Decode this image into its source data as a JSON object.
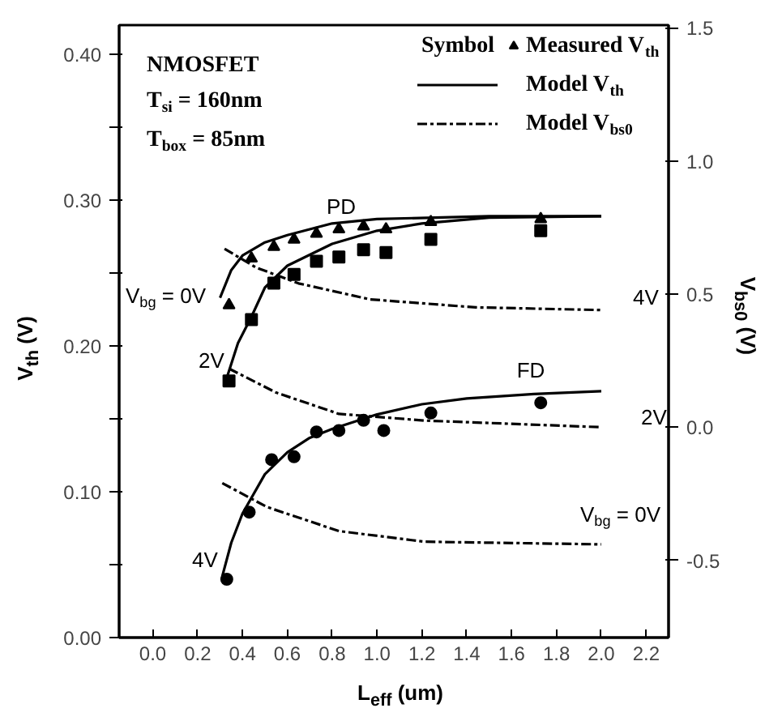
{
  "chart_data": {
    "type": "scatter",
    "xlabel": "L$_{eff}$ (um)",
    "ylabel": "V$_{th}$ (V)",
    "y2label": "V$_{bs0}$ (V)",
    "legend_title": "Symbol",
    "xlim": [
      -0.15,
      2.3
    ],
    "ylim": [
      0,
      0.42
    ],
    "y2lim": [
      -0.79,
      1.51
    ],
    "xticks": [
      {
        "value": 0,
        "label": "0.0"
      },
      {
        "value": 0.2,
        "label": "0.2"
      },
      {
        "value": 0.4,
        "label": "0.4"
      },
      {
        "value": 0.6,
        "label": "0.6"
      },
      {
        "value": 0.8,
        "label": "0.8"
      },
      {
        "value": 1.0,
        "label": "1.0"
      },
      {
        "value": 1.2,
        "label": "1.2"
      },
      {
        "value": 1.4,
        "label": "1.4"
      },
      {
        "value": 1.6,
        "label": "1.6"
      },
      {
        "value": 1.8,
        "label": "1.8"
      },
      {
        "value": 2.0,
        "label": "2.0"
      },
      {
        "value": 2.2,
        "label": "2.2"
      }
    ],
    "yticks": [
      {
        "value": 0,
        "label": "0.00"
      },
      {
        "value": 0.05,
        "label": null
      },
      {
        "value": 0.1,
        "label": "0.10"
      },
      {
        "value": 0.15,
        "label": null
      },
      {
        "value": 0.2,
        "label": "0.20"
      },
      {
        "value": 0.25,
        "label": null
      },
      {
        "value": 0.3,
        "label": "0.30"
      },
      {
        "value": 0.35,
        "label": null
      },
      {
        "value": 0.4,
        "label": "0.40"
      }
    ],
    "y2ticks": [
      {
        "value": -0.5,
        "label": "-0.5"
      },
      {
        "value": 0,
        "label": "0.0"
      },
      {
        "value": 0.5,
        "label": "0.5"
      },
      {
        "value": 1.0,
        "label": "1.0"
      },
      {
        "value": 1.5,
        "label": "1.5"
      }
    ],
    "grid": false,
    "legend": "top right",
    "series": [
      {
        "name": "Measured V$_{th}$",
        "marker": "triangle",
        "color": "#000000",
        "x": [
          0.34,
          0.44,
          0.54,
          0.63,
          0.73,
          0.83,
          0.94,
          1.04,
          1.24,
          1.73
        ],
        "values": [
          0.228,
          0.26,
          0.268,
          0.273,
          0.277,
          0.28,
          0.282,
          0.28,
          0.285,
          0.287
        ]
      },
      {
        "marker": "square",
        "color": "#000000",
        "x": [
          0.34,
          0.44,
          0.54,
          0.63,
          0.73,
          0.83,
          0.94,
          1.04,
          1.24,
          1.73
        ],
        "values": [
          0.176,
          0.218,
          0.243,
          0.249,
          0.258,
          0.261,
          0.266,
          0.264,
          0.273,
          0.279
        ]
      },
      {
        "marker": "circle",
        "color": "#000000",
        "x": [
          0.33,
          0.43,
          0.53,
          0.63,
          0.73,
          0.83,
          0.94,
          1.03,
          1.24,
          1.73
        ],
        "values": [
          0.04,
          0.086,
          0.122,
          0.124,
          0.141,
          0.142,
          0.149,
          0.142,
          0.154,
          0.161
        ]
      },
      {
        "name": "Model V$_{th}$",
        "type": "line",
        "line_style": "solid",
        "color": "#000000",
        "x": [
          0.3,
          0.35,
          0.4,
          0.5,
          0.6,
          0.8,
          1.0,
          1.5,
          2.0
        ],
        "values": [
          0.233,
          0.252,
          0.262,
          0.271,
          0.276,
          0.284,
          0.287,
          0.289,
          0.289
        ]
      },
      {
        "type": "line",
        "line_style": "solid",
        "color": "#000000",
        "x": [
          0.33,
          0.38,
          0.44,
          0.5,
          0.6,
          0.8,
          1.0,
          1.2,
          1.5,
          2.0
        ],
        "values": [
          0.178,
          0.202,
          0.22,
          0.24,
          0.255,
          0.27,
          0.279,
          0.284,
          0.288,
          0.289
        ]
      },
      {
        "type": "line",
        "line_style": "solid",
        "color": "#000000",
        "x": [
          0.31,
          0.35,
          0.4,
          0.5,
          0.6,
          0.7,
          0.8,
          0.9,
          1.0,
          1.2,
          1.4,
          1.7,
          2.0
        ],
        "values": [
          0.042,
          0.065,
          0.085,
          0.112,
          0.127,
          0.137,
          0.143,
          0.148,
          0.153,
          0.16,
          0.164,
          0.167,
          0.169
        ]
      },
      {
        "name": "Model V$_{bs0}$",
        "type": "line",
        "line_style": "dashdot",
        "axis": "y2",
        "color": "#000000",
        "x": [
          0.32,
          0.46,
          0.65,
          0.97,
          1.44,
          2.0
        ],
        "values": [
          0.67,
          0.6,
          0.54,
          0.48,
          0.45,
          0.44
        ]
      },
      {
        "type": "line",
        "line_style": "dashdot",
        "axis": "y2",
        "color": "#000000",
        "x": [
          0.34,
          0.55,
          0.83,
          1.21,
          2.0
        ],
        "values": [
          0.22,
          0.13,
          0.05,
          0.025,
          0.0
        ]
      },
      {
        "type": "line",
        "line_style": "dashdot",
        "axis": "y2",
        "color": "#000000",
        "x": [
          0.31,
          0.51,
          0.83,
          1.21,
          2.0
        ],
        "values": [
          -0.21,
          -0.3,
          -0.39,
          -0.43,
          -0.44
        ]
      }
    ],
    "annotations": [
      "NMOSFET",
      "T$_{si}$ = 160nm",
      "T$_{box}$ = 85nm",
      "PD",
      "FD",
      "V$_{bg}$ = 0V",
      "2V",
      "4V",
      "4V",
      "2V",
      "V$_{bg}$ = 0V"
    ]
  }
}
